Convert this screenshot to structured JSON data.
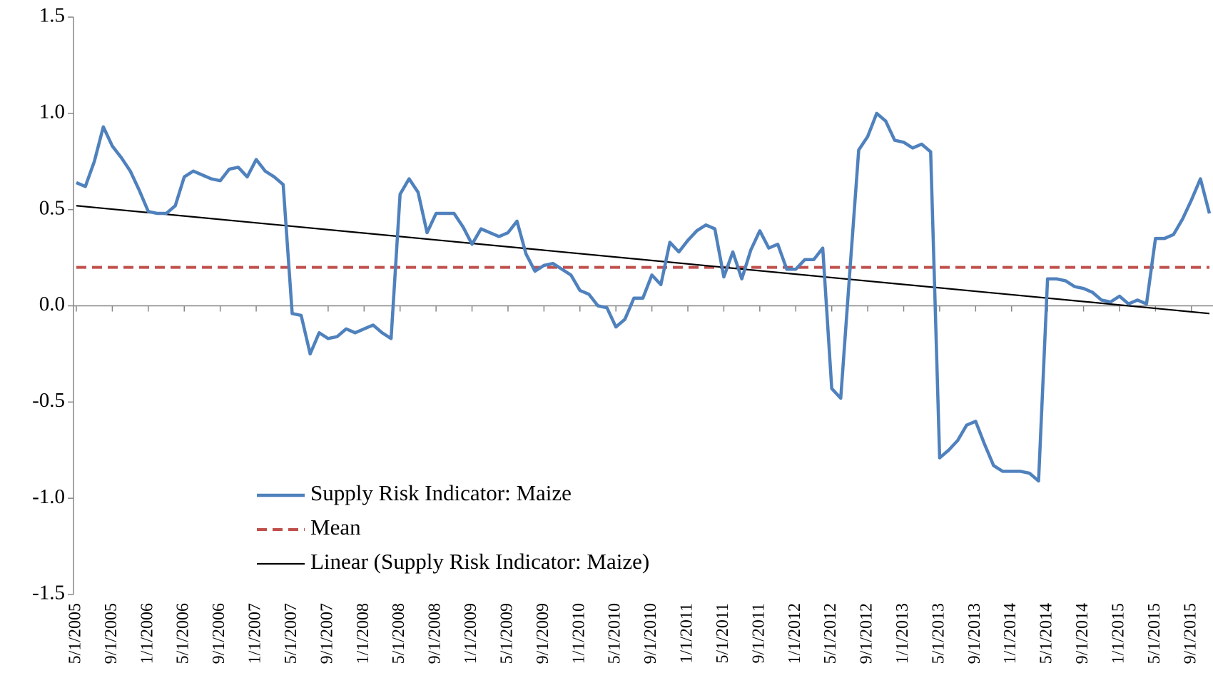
{
  "chart_data": {
    "type": "line",
    "categories": [
      "5/1/2005",
      null,
      null,
      null,
      "9/1/2005",
      null,
      null,
      null,
      "1/1/2006",
      null,
      null,
      null,
      "5/1/2006",
      null,
      null,
      null,
      "9/1/2006",
      null,
      null,
      null,
      "1/1/2007",
      null,
      null,
      null,
      "5/1/2007",
      null,
      null,
      null,
      "9/1/2007",
      null,
      null,
      null,
      "1/1/2008",
      null,
      null,
      null,
      "5/1/2008",
      null,
      null,
      null,
      "9/1/2008",
      null,
      null,
      null,
      "1/1/2009",
      null,
      null,
      null,
      "5/1/2009",
      null,
      null,
      null,
      "9/1/2009",
      null,
      null,
      null,
      "1/1/2010",
      null,
      null,
      null,
      "5/1/2010",
      null,
      null,
      null,
      "9/1/2010",
      null,
      null,
      null,
      "1/1/2011",
      null,
      null,
      null,
      "5/1/2011",
      null,
      null,
      null,
      "9/1/2011",
      null,
      null,
      null,
      "1/1/2012",
      null,
      null,
      null,
      "5/1/2012",
      null,
      null,
      null,
      "9/1/2012",
      null,
      null,
      null,
      "1/1/2013",
      null,
      null,
      null,
      "5/1/2013",
      null,
      null,
      null,
      "9/1/2013",
      null,
      null,
      null,
      "1/1/2014",
      null,
      null,
      null,
      "5/1/2014",
      null,
      null,
      null,
      "9/1/2014",
      null,
      null,
      null,
      "1/1/2015",
      null,
      null,
      null,
      "5/1/2015",
      null,
      null,
      null,
      "9/1/2015",
      null,
      null
    ],
    "series": [
      {
        "name": "Supply Risk Indicator: Maize",
        "color": "#4f81bd",
        "values": [
          0.64,
          0.62,
          0.75,
          0.93,
          0.83,
          0.77,
          0.7,
          0.6,
          0.49,
          0.48,
          0.48,
          0.52,
          0.67,
          0.7,
          0.68,
          0.66,
          0.65,
          0.71,
          0.72,
          0.67,
          0.76,
          0.7,
          0.67,
          0.63,
          -0.04,
          -0.05,
          -0.25,
          -0.14,
          -0.17,
          -0.16,
          -0.12,
          -0.14,
          -0.12,
          -0.1,
          -0.14,
          -0.17,
          0.58,
          0.66,
          0.59,
          0.38,
          0.48,
          0.48,
          0.48,
          0.41,
          0.32,
          0.4,
          0.38,
          0.36,
          0.38,
          0.44,
          0.27,
          0.18,
          0.21,
          0.22,
          0.19,
          0.16,
          0.08,
          0.06,
          0.0,
          -0.01,
          -0.11,
          -0.07,
          0.04,
          0.04,
          0.16,
          0.11,
          0.33,
          0.28,
          0.34,
          0.39,
          0.42,
          0.4,
          0.15,
          0.28,
          0.14,
          0.29,
          0.39,
          0.3,
          0.32,
          0.19,
          0.19,
          0.24,
          0.24,
          0.3,
          -0.43,
          -0.48,
          0.17,
          0.81,
          0.88,
          1.0,
          0.96,
          0.86,
          0.85,
          0.82,
          0.84,
          0.8,
          -0.79,
          -0.75,
          -0.7,
          -0.62,
          -0.6,
          -0.72,
          -0.83,
          -0.86,
          -0.86,
          -0.86,
          -0.87,
          -0.91,
          0.14,
          0.14,
          0.13,
          0.1,
          0.09,
          0.07,
          0.03,
          0.02,
          0.05,
          0.01,
          0.03,
          0.01,
          0.35,
          0.35,
          0.37,
          0.45,
          0.55,
          0.66,
          0.48
        ]
      }
    ],
    "reference_lines": [
      {
        "name": "Mean",
        "color": "#c0504d",
        "dashed": true,
        "value": 0.2
      },
      {
        "name": "Linear (Supply Risk Indicator: Maize)",
        "color": "#000000",
        "dashed": false,
        "start": 0.52,
        "end": -0.04
      }
    ],
    "ylim": [
      -1.5,
      1.5
    ],
    "yticks": [
      {
        "value": -1.5,
        "label": "-1.5"
      },
      -0.5,
      {
        "value": -1,
        "label": "-1.0"
      },
      {
        "value": 0,
        "label": "0.0"
      },
      0.5,
      {
        "value": 1,
        "label": "1.0"
      },
      1.5
    ],
    "legend": "lower-left"
  }
}
